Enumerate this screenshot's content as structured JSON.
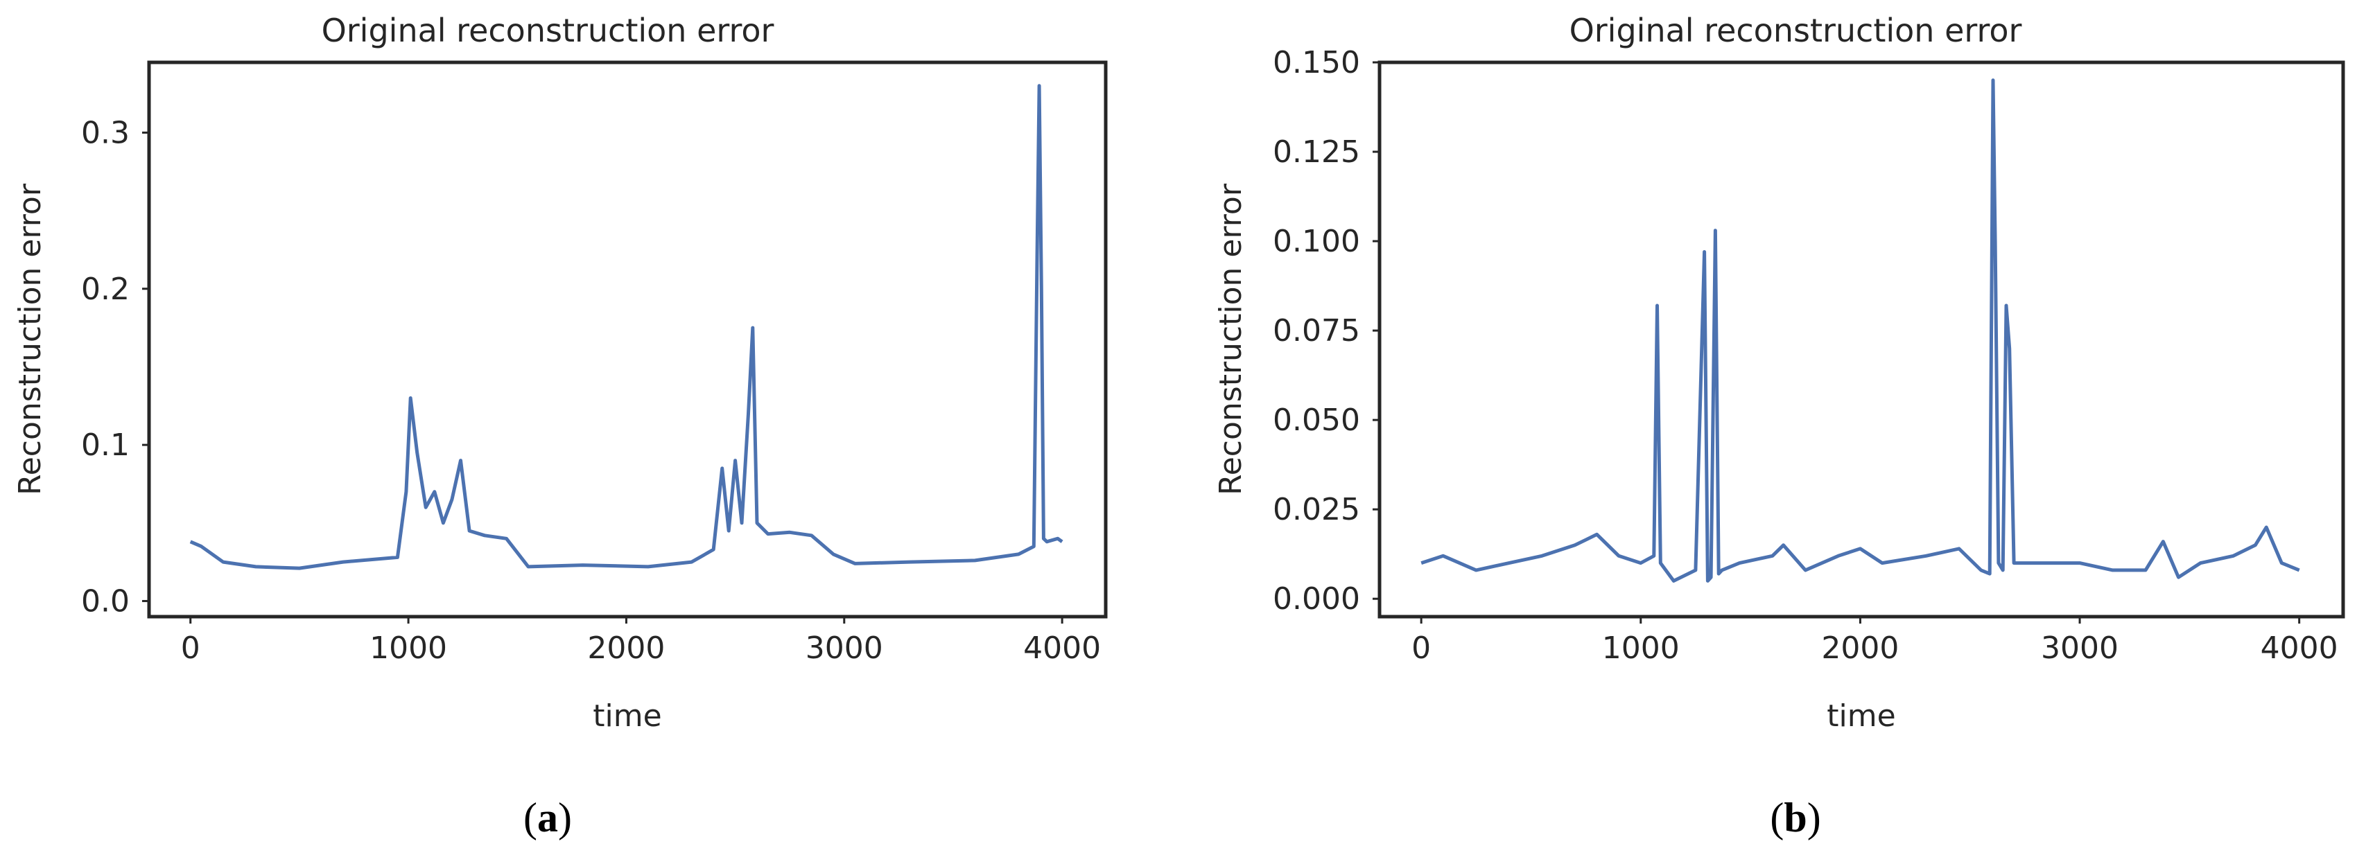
{
  "colors": {
    "series": "#4c72b0",
    "axes": "#262626"
  },
  "chart_data": [
    {
      "type": "line",
      "title": "Original reconstruction error",
      "xlabel": "time",
      "ylabel": "Reconstruction error",
      "xlim": [
        -190,
        4200
      ],
      "ylim": [
        -0.01,
        0.345
      ],
      "xticks": [
        0,
        1000,
        2000,
        3000,
        4000
      ],
      "xtick_labels": [
        "0",
        "1000",
        "2000",
        "3000",
        "4000"
      ],
      "yticks": [
        0.0,
        0.1,
        0.2,
        0.3
      ],
      "ytick_labels": [
        "0.0",
        "0.1",
        "0.2",
        "0.3"
      ],
      "grid": false,
      "caption": {
        "open": "(",
        "letter": "a",
        "close": ")"
      },
      "series": [
        {
          "x": [
            0,
            50,
            150,
            300,
            500,
            700,
            950,
            990,
            1010,
            1040,
            1080,
            1120,
            1160,
            1200,
            1240,
            1280,
            1350,
            1450,
            1550,
            1800,
            2100,
            2300,
            2400,
            2440,
            2470,
            2500,
            2530,
            2560,
            2580,
            2600,
            2650,
            2750,
            2850,
            2950,
            3050,
            3300,
            3600,
            3800,
            3870,
            3885,
            3895,
            3905,
            3915,
            3930,
            3980,
            4000
          ],
          "y": [
            0.038,
            0.035,
            0.025,
            0.022,
            0.021,
            0.025,
            0.028,
            0.07,
            0.13,
            0.095,
            0.06,
            0.07,
            0.05,
            0.065,
            0.09,
            0.045,
            0.042,
            0.04,
            0.022,
            0.023,
            0.022,
            0.025,
            0.033,
            0.085,
            0.045,
            0.09,
            0.05,
            0.12,
            0.175,
            0.05,
            0.043,
            0.044,
            0.042,
            0.03,
            0.024,
            0.025,
            0.026,
            0.03,
            0.035,
            0.22,
            0.33,
            0.2,
            0.04,
            0.038,
            0.04,
            0.038
          ]
        }
      ]
    },
    {
      "type": "line",
      "title": "Original reconstruction error",
      "xlabel": "time",
      "ylabel": "Reconstruction error",
      "xlim": [
        -190,
        4200
      ],
      "ylim": [
        -0.005,
        0.15
      ],
      "xticks": [
        0,
        1000,
        2000,
        3000,
        4000
      ],
      "xtick_labels": [
        "0",
        "1000",
        "2000",
        "3000",
        "4000"
      ],
      "yticks": [
        0.0,
        0.025,
        0.05,
        0.075,
        0.1,
        0.125,
        0.15
      ],
      "ytick_labels": [
        "0.000",
        "0.025",
        "0.050",
        "0.075",
        "0.100",
        "0.125",
        "0.150"
      ],
      "grid": false,
      "caption": {
        "open": "(",
        "letter": "b",
        "close": ")"
      },
      "series": [
        {
          "x": [
            0,
            100,
            250,
            400,
            550,
            700,
            800,
            900,
            1000,
            1060,
            1075,
            1090,
            1150,
            1250,
            1290,
            1305,
            1320,
            1340,
            1355,
            1370,
            1450,
            1600,
            1650,
            1750,
            1900,
            2000,
            2100,
            2300,
            2450,
            2550,
            2590,
            2605,
            2615,
            2630,
            2650,
            2665,
            2680,
            2700,
            2850,
            3000,
            3150,
            3300,
            3380,
            3450,
            3550,
            3700,
            3800,
            3850,
            3920,
            4000
          ],
          "y": [
            0.01,
            0.012,
            0.008,
            0.01,
            0.012,
            0.015,
            0.018,
            0.012,
            0.01,
            0.012,
            0.082,
            0.01,
            0.005,
            0.008,
            0.097,
            0.005,
            0.006,
            0.103,
            0.007,
            0.008,
            0.01,
            0.012,
            0.015,
            0.008,
            0.012,
            0.014,
            0.01,
            0.012,
            0.014,
            0.008,
            0.007,
            0.145,
            0.1,
            0.01,
            0.008,
            0.082,
            0.07,
            0.01,
            0.01,
            0.01,
            0.008,
            0.008,
            0.016,
            0.006,
            0.01,
            0.012,
            0.015,
            0.02,
            0.01,
            0.008
          ]
        }
      ]
    }
  ]
}
